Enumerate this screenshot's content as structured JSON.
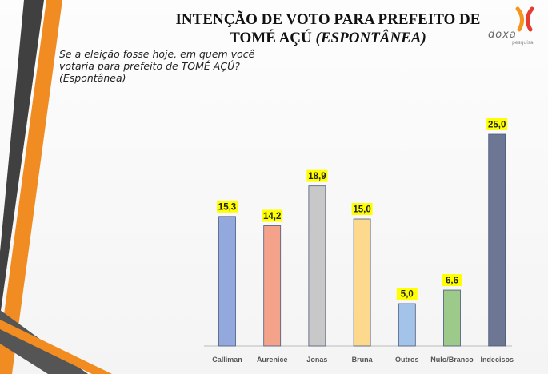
{
  "header": {
    "title_line1": "INTENÇÃO DE VOTO PARA PREFEITO DE",
    "title_line2_plain": "TOMÉ AÇÚ ",
    "title_line2_italic": "(ESPONTÂNEA)",
    "question": "Se a eleição fosse hoje, em quem você votaria para prefeito de TOMÉ AÇÚ? (Espontânea)"
  },
  "logo": {
    "name": "doxa",
    "sub": "pesquisa",
    "icon": "doxa-logo-icon",
    "colors": [
      "#f7941d",
      "#e63c2f"
    ]
  },
  "chart_data": {
    "type": "bar",
    "categories": [
      "Calliman",
      "Aurenice",
      "Jonas",
      "Bruna",
      "Outros",
      "Nulo/Branco",
      "Indecisos"
    ],
    "values": [
      15.3,
      14.2,
      18.9,
      15.0,
      5.0,
      6.6,
      25.0
    ],
    "labels": [
      "15,3",
      "14,2",
      "18,9",
      "15,0",
      "5,0",
      "6,6",
      "25,0"
    ],
    "colors": [
      "#93a9dd",
      "#f4a38a",
      "#c8c8c8",
      "#fcd98d",
      "#a3c4e8",
      "#9dc98b",
      "#6d7793"
    ],
    "ylim": [
      0,
      25
    ],
    "label_bg": "#ffff00"
  }
}
